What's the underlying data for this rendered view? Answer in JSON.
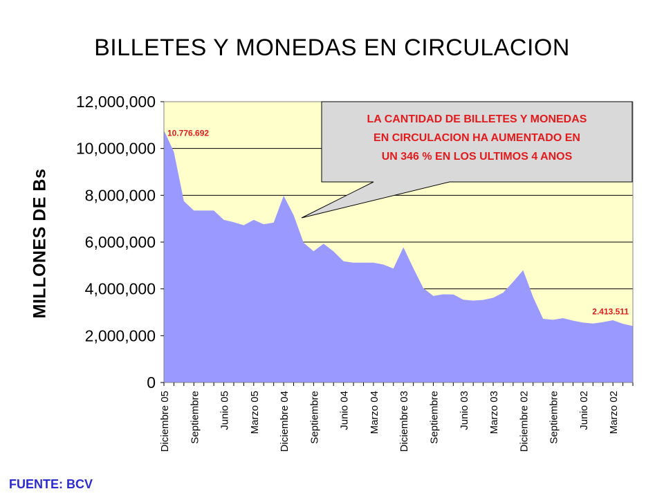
{
  "chart_data": {
    "type": "area",
    "title": "BILLETES Y MONEDAS EN CIRCULACION",
    "ylabel": "MILLONES DE Bs",
    "xlabel": "",
    "ylim": [
      0,
      12000000
    ],
    "y_ticks": [
      "0",
      "2,000,000",
      "4,000,000",
      "6,000,000",
      "8,000,000",
      "10,000,000",
      "12,000,000"
    ],
    "y_tick_values": [
      0,
      2000000,
      4000000,
      6000000,
      8000000,
      10000000,
      12000000
    ],
    "x_tick_labels": [
      "Diciembre 05",
      "Septiembre",
      "Junio 05",
      "Marzo 05",
      "Diciembre 04",
      "Septiembre",
      "Junio 04",
      "Marzo 04",
      "Diciembre 03",
      "Septiembre",
      "Junio 03",
      "Marzo 03",
      "Diciembre 02",
      "Septiembre",
      "Junio 02",
      "Marzo 02"
    ],
    "x_tick_label_month_index": [
      0,
      3,
      6,
      9,
      12,
      15,
      18,
      21,
      24,
      27,
      30,
      33,
      36,
      39,
      42,
      45
    ],
    "grid": true,
    "colors": {
      "area": "#9999ff",
      "plot_bg": "#ffffcc",
      "label": "#e31a1c",
      "callout_bg": "#d9d9d9"
    },
    "values": [
      10776692,
      9850000,
      7750000,
      7350000,
      7350000,
      7350000,
      6950000,
      6850000,
      6720000,
      6950000,
      6760000,
      6830000,
      7980000,
      7150000,
      5970000,
      5610000,
      5930000,
      5600000,
      5180000,
      5120000,
      5120000,
      5120000,
      5040000,
      4870000,
      5780000,
      4880000,
      4030000,
      3700000,
      3770000,
      3760000,
      3540000,
      3500000,
      3530000,
      3620000,
      3840000,
      4300000,
      4800000,
      3650000,
      2720000,
      2680000,
      2750000,
      2640000,
      2560000,
      2520000,
      2580000,
      2660000,
      2510000,
      2413511
    ],
    "annotations": [
      {
        "text": "10.776.692",
        "index": 0
      },
      {
        "text": "2.413.511",
        "index": 47
      }
    ],
    "callout": {
      "lines": [
        "LA CANTIDAD DE BILLETES Y MONEDAS",
        "EN CIRCULACION HA AUMENTADO EN",
        "UN 346 % EN LOS ULTIMOS 4 ANOS"
      ]
    }
  },
  "source": "FUENTE: BCV"
}
